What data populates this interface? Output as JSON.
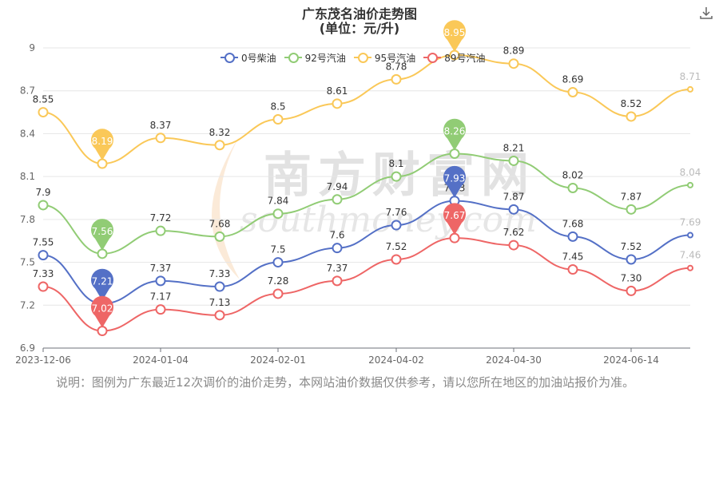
{
  "title_line1": "广东茂名油价走势图",
  "title_line2": "(单位：元/升)",
  "note": "说明：图例为广东最近12次调价的油价走势，本网站油价数据仅供参考，请以您所在地区的加油站报价为准。",
  "watermark_text": "南方财富网",
  "watermark_sub": "southmoney.com",
  "chart_data": {
    "type": "line",
    "x_tick_labels": [
      "2023-12-06",
      "2024-01-04",
      "2024-02-01",
      "2024-04-02",
      "2024-04-30",
      "2024-06-14"
    ],
    "ylim": [
      6.9,
      9.0
    ],
    "y_ticks": [
      "6.9",
      "7.2",
      "7.5",
      "7.8",
      "8.1",
      "8.4",
      "8.7",
      "9"
    ],
    "legend_position": "top",
    "series": [
      {
        "name": "0号柴油",
        "color": "#5470c6",
        "values": [
          7.55,
          7.21,
          7.37,
          7.33,
          7.5,
          7.6,
          7.76,
          7.93,
          7.87,
          7.68,
          7.52,
          7.69
        ],
        "labels": [
          "7.55",
          "",
          "7.37",
          "7.33",
          "7.5",
          "7.6",
          "7.76",
          "7.93",
          "7.87",
          "7.68",
          "7.52",
          "7.69"
        ],
        "pins": [
          {
            "index": 1,
            "label": "7.21"
          },
          {
            "index": 7,
            "label": "7.93"
          }
        ]
      },
      {
        "name": "92号汽油",
        "color": "#91cc75",
        "values": [
          7.9,
          7.56,
          7.72,
          7.68,
          7.84,
          7.94,
          8.1,
          8.26,
          8.21,
          8.02,
          7.87,
          8.04
        ],
        "labels": [
          "7.9",
          "",
          "7.72",
          "7.68",
          "7.84",
          "7.94",
          "8.1",
          "",
          "8.21",
          "8.02",
          "7.87",
          "8.04"
        ],
        "pins": [
          {
            "index": 1,
            "label": "7.56"
          },
          {
            "index": 7,
            "label": "8.26"
          }
        ]
      },
      {
        "name": "95号汽油",
        "color": "#fac858",
        "values": [
          8.55,
          8.19,
          8.37,
          8.32,
          8.5,
          8.61,
          8.78,
          8.95,
          8.89,
          8.69,
          8.52,
          8.71
        ],
        "labels": [
          "8.55",
          "",
          "8.37",
          "8.32",
          "8.5",
          "8.61",
          "8.78",
          "",
          "8.89",
          "8.69",
          "8.52",
          "8.71"
        ],
        "pins": [
          {
            "index": 1,
            "label": "8.19"
          },
          {
            "index": 7,
            "label": "8.95"
          }
        ]
      },
      {
        "name": "89号汽油",
        "color": "#ee6666",
        "values": [
          7.33,
          7.02,
          7.17,
          7.13,
          7.28,
          7.37,
          7.52,
          7.67,
          7.62,
          7.45,
          7.3,
          7.46
        ],
        "labels": [
          "7.33",
          "",
          "7.17",
          "7.13",
          "7.28",
          "7.37",
          "7.52",
          "",
          "7.62",
          "7.45",
          "7.30",
          "7.46"
        ],
        "pins": [
          {
            "index": 1,
            "label": "7.02"
          },
          {
            "index": 7,
            "label": "7.67"
          }
        ]
      }
    ]
  }
}
